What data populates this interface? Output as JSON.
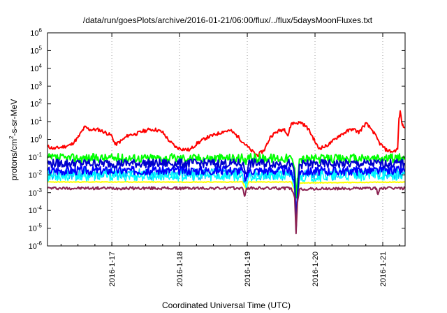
{
  "chart_data": {
    "type": "line",
    "title": "/data/run/goesPlots/archive/2016-01-21/06:00/flux/../flux/5daysMoonFluxes.txt",
    "xlabel": "Coordinated Universal Time (UTC)",
    "ylabel_parts": {
      "pre": "protons/cm",
      "sup": "2",
      "post": "-s-sr-MeV"
    },
    "yscale": "log",
    "ylim_exp": [
      -6,
      6
    ],
    "yticks": [
      {
        "base": "10",
        "exp": "-6"
      },
      {
        "base": "10",
        "exp": "-5"
      },
      {
        "base": "10",
        "exp": "-4"
      },
      {
        "base": "10",
        "exp": "-3"
      },
      {
        "base": "10",
        "exp": "-2"
      },
      {
        "base": "10",
        "exp": "-1"
      },
      {
        "base": "10",
        "exp": "0"
      },
      {
        "base": "10",
        "exp": "1"
      },
      {
        "base": "10",
        "exp": "2"
      },
      {
        "base": "10",
        "exp": "3"
      },
      {
        "base": "10",
        "exp": "4"
      },
      {
        "base": "10",
        "exp": "5"
      },
      {
        "base": "10",
        "exp": "6"
      }
    ],
    "xlim_days": [
      0.0,
      5.28
    ],
    "xticks": [
      {
        "label": "2016-1-17",
        "day": 0.95
      },
      {
        "label": "2016-1-18",
        "day": 1.95
      },
      {
        "label": "2016-1-19",
        "day": 2.95
      },
      {
        "label": "2016-1-20",
        "day": 3.95
      },
      {
        "label": "2016-1-21",
        "day": 4.95
      }
    ],
    "grid": true,
    "legend": "none",
    "series": [
      {
        "color": "#ff0000",
        "width": 2,
        "noise": 0.1,
        "seed": 11,
        "points": [
          [
            0.0,
            -0.4
          ],
          [
            0.1,
            -0.52
          ],
          [
            0.25,
            -0.4
          ],
          [
            0.35,
            -0.3
          ],
          [
            0.45,
            0.1
          ],
          [
            0.55,
            0.7
          ],
          [
            0.62,
            0.55
          ],
          [
            0.75,
            0.55
          ],
          [
            0.85,
            0.4
          ],
          [
            0.95,
            0.2
          ],
          [
            1.0,
            -0.3
          ],
          [
            1.1,
            -0.05
          ],
          [
            1.2,
            0.25
          ],
          [
            1.3,
            0.3
          ],
          [
            1.4,
            0.45
          ],
          [
            1.5,
            0.55
          ],
          [
            1.6,
            0.55
          ],
          [
            1.7,
            0.4
          ],
          [
            1.8,
            -0.1
          ],
          [
            1.9,
            -0.45
          ],
          [
            2.0,
            -0.55
          ],
          [
            2.1,
            -0.6
          ],
          [
            2.2,
            -0.25
          ],
          [
            2.35,
            0.1
          ],
          [
            2.5,
            0.3
          ],
          [
            2.6,
            0.45
          ],
          [
            2.7,
            0.5
          ],
          [
            2.8,
            0.2
          ],
          [
            2.9,
            -0.2
          ],
          [
            3.0,
            -0.6
          ],
          [
            3.1,
            -0.9
          ],
          [
            3.2,
            -0.6
          ],
          [
            3.3,
            0.2
          ],
          [
            3.4,
            0.45
          ],
          [
            3.5,
            0.6
          ],
          [
            3.55,
            0.2
          ],
          [
            3.6,
            0.9
          ],
          [
            3.75,
            0.95
          ],
          [
            3.85,
            0.6
          ],
          [
            3.92,
            0.1
          ],
          [
            4.0,
            -0.5
          ],
          [
            4.1,
            -0.4
          ],
          [
            4.2,
            -0.15
          ],
          [
            4.3,
            0.2
          ],
          [
            4.4,
            0.4
          ],
          [
            4.5,
            0.6
          ],
          [
            4.6,
            0.4
          ],
          [
            4.7,
            0.9
          ],
          [
            4.8,
            0.5
          ],
          [
            4.9,
            -0.2
          ],
          [
            5.0,
            -0.6
          ],
          [
            5.1,
            -0.7
          ],
          [
            5.17,
            -0.55
          ],
          [
            5.19,
            1.2
          ],
          [
            5.21,
            1.55
          ],
          [
            5.24,
            0.8
          ],
          [
            5.28,
            0.65
          ]
        ]
      },
      {
        "color": "#ffff00",
        "width": 2,
        "noise": 0.02,
        "seed": 23,
        "points": [
          [
            0.0,
            -2.4
          ],
          [
            2.88,
            -2.4
          ],
          [
            2.93,
            -2.8
          ],
          [
            2.97,
            -2.4
          ],
          [
            3.6,
            -2.4
          ],
          [
            3.65,
            -2.9
          ],
          [
            3.67,
            -4.6
          ],
          [
            3.69,
            -3.5
          ],
          [
            3.72,
            -2.45
          ],
          [
            5.28,
            -2.4
          ]
        ]
      },
      {
        "color": "#00ff00",
        "width": 2,
        "noise": 0.25,
        "seed": 37,
        "points": [
          [
            0.0,
            -1.05
          ],
          [
            2.88,
            -1.05
          ],
          [
            2.93,
            -1.4
          ],
          [
            2.97,
            -1.05
          ],
          [
            3.6,
            -1.05
          ],
          [
            3.65,
            -1.6
          ],
          [
            3.67,
            -3.2
          ],
          [
            3.69,
            -2.2
          ],
          [
            3.72,
            -1.1
          ],
          [
            5.28,
            -1.05
          ]
        ]
      },
      {
        "color": "#00bfff",
        "width": 1.5,
        "noise": 0.35,
        "seed": 41,
        "points": [
          [
            0.0,
            -1.95
          ],
          [
            2.88,
            -1.95
          ],
          [
            2.93,
            -2.5
          ],
          [
            2.97,
            -1.95
          ],
          [
            3.6,
            -1.95
          ],
          [
            3.65,
            -2.6
          ],
          [
            3.67,
            -4.5
          ],
          [
            3.69,
            -3.2
          ],
          [
            3.72,
            -2.0
          ],
          [
            5.28,
            -1.9
          ]
        ]
      },
      {
        "color": "#00ffff",
        "width": 1.5,
        "noise": 0.3,
        "seed": 53,
        "points": [
          [
            0.0,
            -2.05
          ],
          [
            2.88,
            -2.05
          ],
          [
            2.93,
            -2.7
          ],
          [
            2.97,
            -2.05
          ],
          [
            3.6,
            -2.05
          ],
          [
            3.65,
            -2.8
          ],
          [
            3.67,
            -4.7
          ],
          [
            3.69,
            -3.4
          ],
          [
            3.72,
            -2.1
          ],
          [
            5.28,
            -2.0
          ]
        ]
      },
      {
        "color": "#0000ff",
        "width": 2,
        "noise": 0.25,
        "seed": 67,
        "points": [
          [
            0.0,
            -1.75
          ],
          [
            2.88,
            -1.75
          ],
          [
            2.93,
            -2.3
          ],
          [
            2.97,
            -1.75
          ],
          [
            3.6,
            -1.75
          ],
          [
            3.65,
            -2.5
          ],
          [
            3.67,
            -4.9
          ],
          [
            3.69,
            -3.3
          ],
          [
            3.72,
            -1.8
          ],
          [
            5.28,
            -1.75
          ]
        ]
      },
      {
        "color": "#0000cd",
        "width": 2,
        "noise": 0.25,
        "seed": 79,
        "points": [
          [
            0.0,
            -1.35
          ],
          [
            2.88,
            -1.35
          ],
          [
            2.93,
            -1.9
          ],
          [
            2.97,
            -1.35
          ],
          [
            3.6,
            -1.35
          ],
          [
            3.65,
            -2.1
          ],
          [
            3.67,
            -5.1
          ],
          [
            3.69,
            -3.2
          ],
          [
            3.72,
            -1.4
          ],
          [
            5.28,
            -1.35
          ]
        ]
      },
      {
        "color": "#8b2252",
        "width": 2,
        "noise": 0.08,
        "seed": 97,
        "points": [
          [
            0.0,
            -2.75
          ],
          [
            2.88,
            -2.75
          ],
          [
            2.91,
            -3.2
          ],
          [
            2.94,
            -2.75
          ],
          [
            3.6,
            -2.75
          ],
          [
            3.65,
            -3.3
          ],
          [
            3.67,
            -5.3
          ],
          [
            3.69,
            -3.6
          ],
          [
            3.72,
            -2.8
          ],
          [
            4.85,
            -2.75
          ],
          [
            4.88,
            -3.1
          ],
          [
            4.91,
            -2.75
          ],
          [
            5.28,
            -2.75
          ]
        ]
      }
    ]
  }
}
